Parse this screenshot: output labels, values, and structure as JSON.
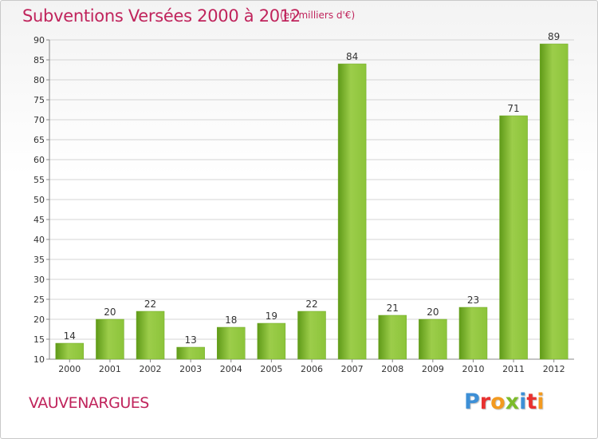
{
  "header": {
    "title": "Subventions Versées 2000 à 2012",
    "subtitle": "(en milliers d'€)"
  },
  "footer": {
    "commune": "VAUVENARGUES",
    "logo_text": "Proxiti",
    "logo_colors": [
      "#3d8fd6",
      "#e8312f",
      "#f39a1f",
      "#7cbb2a",
      "#3d8fd6",
      "#e8312f",
      "#f39a1f"
    ]
  },
  "chart_data": {
    "type": "bar",
    "title": "Subventions Versées 2000 à 2012",
    "subtitle": "(en milliers d'€)",
    "xlabel": "",
    "ylabel": "",
    "categories": [
      "2000",
      "2001",
      "2002",
      "2003",
      "2004",
      "2005",
      "2006",
      "2007",
      "2008",
      "2009",
      "2010",
      "2011",
      "2012"
    ],
    "values": [
      14,
      20,
      22,
      13,
      18,
      19,
      22,
      84,
      21,
      20,
      23,
      71,
      89
    ],
    "ylim": [
      10,
      90
    ],
    "yticks": [
      10,
      15,
      20,
      25,
      30,
      35,
      40,
      45,
      50,
      55,
      60,
      65,
      70,
      75,
      80,
      85,
      90
    ],
    "grid": true,
    "bar_color_light": "#9ccd4a",
    "bar_color_dark": "#5f9a18"
  }
}
